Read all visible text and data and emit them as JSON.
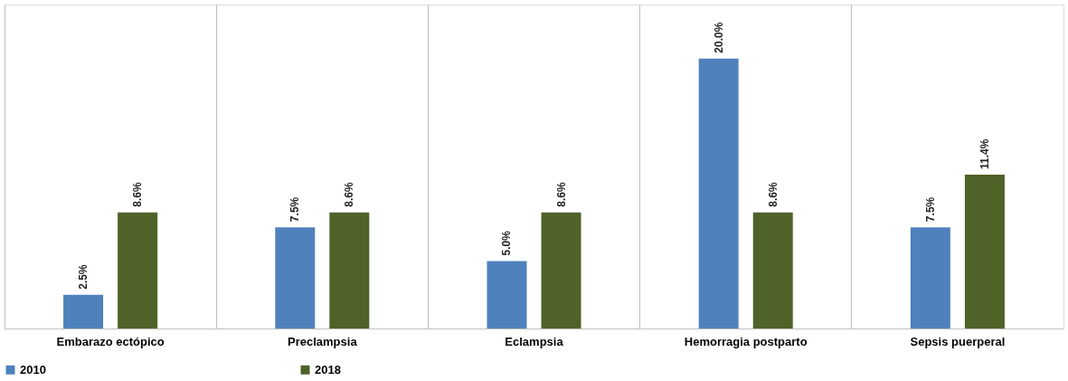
{
  "chart_data": {
    "type": "bar",
    "categories": [
      "Embarazo ectópico",
      "Preclampsia",
      "Eclampsia",
      "Hemorragia postparto",
      "Sepsis puerperal"
    ],
    "series": [
      {
        "name": "2010",
        "color": "#4f81bd",
        "values": [
          2.5,
          7.5,
          5.0,
          20.0,
          7.5
        ],
        "value_labels": [
          "2.5%",
          "7.5%",
          "5.0%",
          "20.0%",
          "7.5%"
        ]
      },
      {
        "name": "2018",
        "color": "#4f6228",
        "values": [
          8.6,
          8.6,
          8.6,
          8.6,
          11.4
        ],
        "value_labels": [
          "8.6%",
          "8.6%",
          "8.6%",
          "8.6%",
          "11.4%"
        ]
      }
    ],
    "grid": "x",
    "legend": "bottom"
  }
}
